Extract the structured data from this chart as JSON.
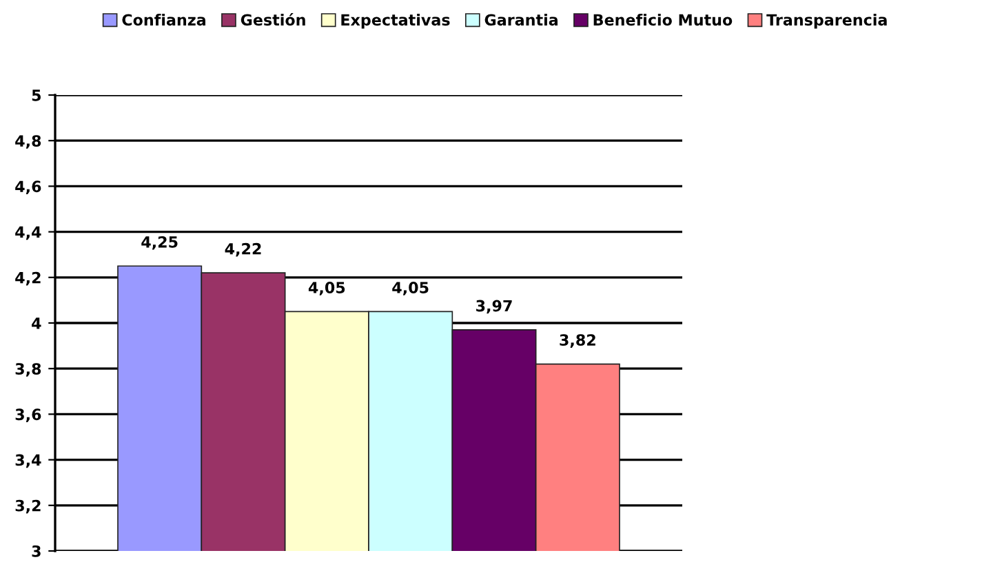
{
  "chart_data": {
    "type": "bar",
    "categories": [
      null
    ],
    "series": [
      {
        "name": "Confianza",
        "color": "#9999ff",
        "values": [
          4.25
        ],
        "value_labels": [
          "4,25"
        ]
      },
      {
        "name": "Gestión",
        "color": "#993366",
        "values": [
          4.22
        ],
        "value_labels": [
          "4,22"
        ]
      },
      {
        "name": "Expectativas",
        "color": "#ffffcc",
        "values": [
          4.05
        ],
        "value_labels": [
          "4,05"
        ]
      },
      {
        "name": "Garantia",
        "color": "#ccffff",
        "values": [
          4.05
        ],
        "value_labels": [
          "4,05"
        ]
      },
      {
        "name": "Beneficio Mutuo",
        "color": "#660066",
        "values": [
          3.97
        ],
        "value_labels": [
          "3,97"
        ]
      },
      {
        "name": "Transparencia",
        "color": "#ff8080",
        "values": [
          3.82
        ],
        "value_labels": [
          "3,82"
        ]
      }
    ],
    "ylim": [
      3,
      5
    ],
    "yticks": [
      {
        "value": 3,
        "label": "3"
      },
      {
        "value": 3.2,
        "label": "3,2"
      },
      {
        "value": 3.4,
        "label": "3,4"
      },
      {
        "value": 3.6,
        "label": "3,6"
      },
      {
        "value": 3.8,
        "label": "3,8"
      },
      {
        "value": 4,
        "label": "4"
      },
      {
        "value": 4.2,
        "label": "4,2"
      },
      {
        "value": 4.4,
        "label": "4,4"
      },
      {
        "value": 4.6,
        "label": "4,6"
      },
      {
        "value": 4.8,
        "label": "4,8"
      },
      {
        "value": 5,
        "label": "5"
      }
    ],
    "grid": "y",
    "legend": "top"
  }
}
